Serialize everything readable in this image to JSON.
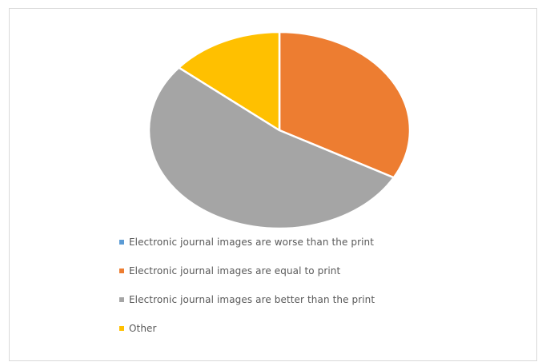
{
  "chart_data": {
    "type": "pie",
    "title": "",
    "categories": [
      "Electronic journal images are worse than the print",
      "Electronic journal images are equal to print",
      "Electronic journal images are better than the print",
      "Other"
    ],
    "values": [
      0,
      33,
      53,
      14
    ],
    "colors": [
      "#5b9bd5",
      "#ed7d31",
      "#a5a5a5",
      "#ffc000"
    ],
    "start_angle_deg": 0,
    "direction": "clockwise",
    "slice_border_color": "#ffffff",
    "legend_position": "bottom-left"
  }
}
